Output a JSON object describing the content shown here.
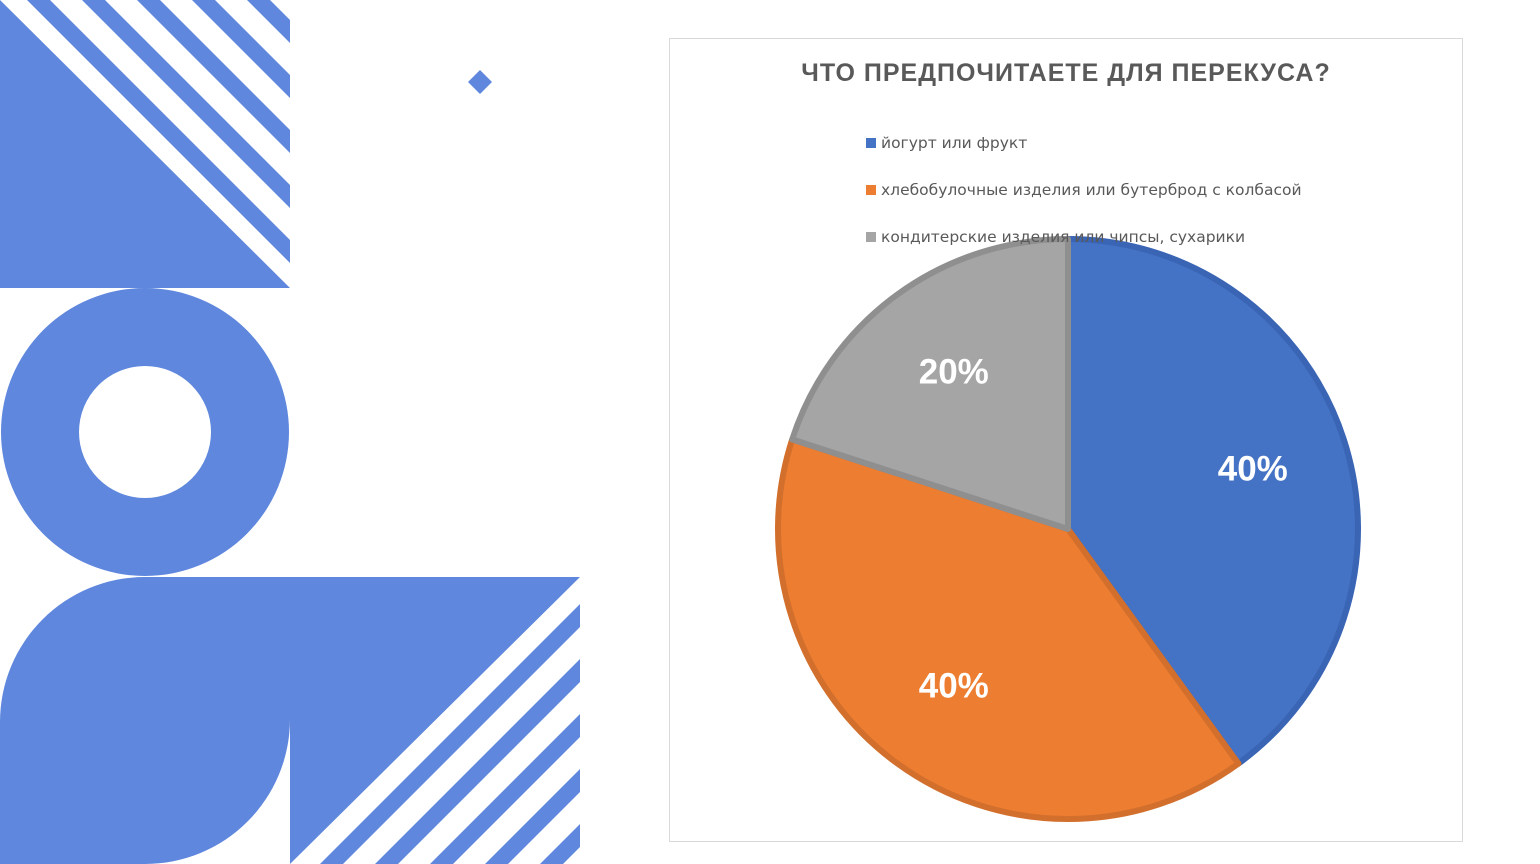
{
  "colors": {
    "decor": "#5e87dd",
    "series": [
      "#4472c4",
      "#ed7d31",
      "#a5a5a5"
    ],
    "slice_borders": [
      "#3a64b4",
      "#d26f2c",
      "#8f8f8f"
    ],
    "title": "#595959",
    "legend_text": "#595959",
    "data_label": "#ffffff",
    "frame_border": "#d9d9d9"
  },
  "chart_data": {
    "type": "pie",
    "title": "ЧТО ПРЕДПОЧИТАЕТЕ ДЛЯ ПЕРЕКУСА?",
    "categories": [
      "йогурт или фрукт",
      "хлебобулочные изделия или бутерброд с колбасой",
      "кондитерские изделия или чипсы, сухарики"
    ],
    "values": [
      40,
      40,
      20
    ],
    "data_labels": [
      "40%",
      "40%",
      "20%"
    ],
    "legend_position": "top",
    "start_angle": "12 o'clock",
    "direction": "clockwise"
  }
}
